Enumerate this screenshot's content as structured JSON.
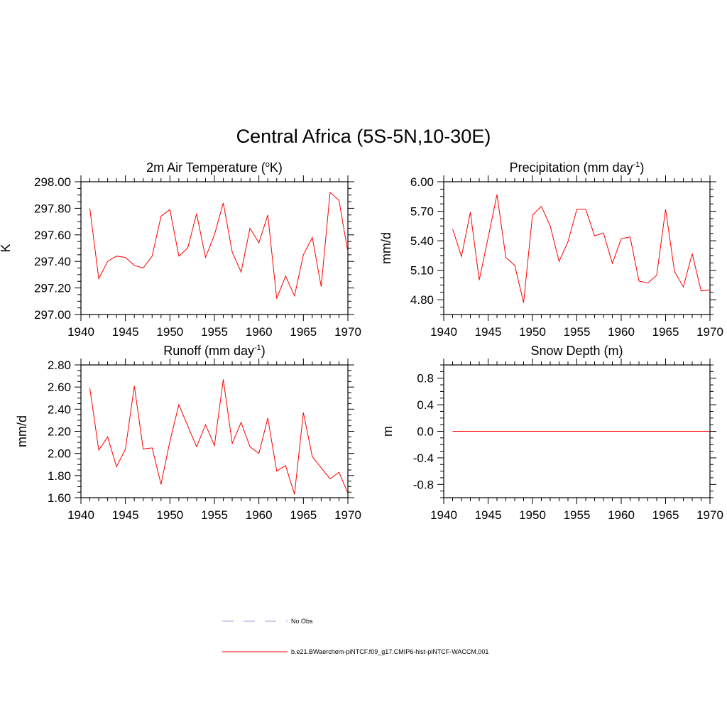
{
  "title": "Central Africa (5S-5N,10-30E)",
  "colors": {
    "model": "#ff0000",
    "obs": "#9999dd",
    "axis": "#000000"
  },
  "legend": [
    {
      "label": "No Obs",
      "style": "dashed",
      "color": "#9999dd"
    },
    {
      "label": "b.e21.BWaerchem-piNTCF.f09_g17.CMIP6-hist-piNTCF-WACCM.001",
      "style": "solid",
      "color": "#ff0000"
    }
  ],
  "chart_data": [
    {
      "type": "line",
      "title": "2m Air Temperature (°K)",
      "title_parts": {
        "pre": "2m Air Temperature (",
        "sup": "o",
        "post": "K)"
      },
      "ylabel": "K",
      "xlim": [
        1940,
        1970
      ],
      "ylim": [
        297.0,
        298.0
      ],
      "xticks": [
        1940,
        1945,
        1950,
        1955,
        1960,
        1965,
        1970
      ],
      "yticks": [
        "297.00",
        "297.20",
        "297.40",
        "297.60",
        "297.80",
        "298.00"
      ],
      "x": [
        1941,
        1942,
        1943,
        1944,
        1945,
        1946,
        1947,
        1948,
        1949,
        1950,
        1951,
        1952,
        1953,
        1954,
        1955,
        1956,
        1957,
        1958,
        1959,
        1960,
        1961,
        1962,
        1963,
        1964,
        1965,
        1966,
        1967,
        1968,
        1969,
        1970
      ],
      "series": [
        {
          "name": "b.e21.BWaerchem-piNTCF.f09_g17.CMIP6-hist-piNTCF-WACCM.001",
          "values": [
            297.8,
            297.27,
            297.4,
            297.44,
            297.43,
            297.37,
            297.35,
            297.44,
            297.74,
            297.79,
            297.44,
            297.5,
            297.76,
            297.43,
            297.6,
            297.84,
            297.47,
            297.32,
            297.65,
            297.54,
            297.75,
            297.12,
            297.29,
            297.14,
            297.45,
            297.58,
            297.21,
            297.92,
            297.86,
            297.47
          ]
        }
      ]
    },
    {
      "type": "line",
      "title": "Precipitation (mm day-1)",
      "title_parts": {
        "pre": "Precipitation (mm day",
        "sup": "-1",
        "post": ")"
      },
      "ylabel": "mm/d",
      "xlim": [
        1940,
        1970
      ],
      "ylim": [
        4.65,
        6.0
      ],
      "xticks": [
        1940,
        1945,
        1950,
        1955,
        1960,
        1965,
        1970
      ],
      "yticks": [
        "4.80",
        "5.10",
        "5.40",
        "5.70",
        "6.00"
      ],
      "x": [
        1941,
        1942,
        1943,
        1944,
        1945,
        1946,
        1947,
        1948,
        1949,
        1950,
        1951,
        1952,
        1953,
        1954,
        1955,
        1956,
        1957,
        1958,
        1959,
        1960,
        1961,
        1962,
        1963,
        1964,
        1965,
        1966,
        1967,
        1968,
        1969,
        1970
      ],
      "series": [
        {
          "name": "b.e21.BWaerchem-piNTCF.f09_g17.CMIP6-hist-piNTCF-WACCM.001",
          "values": [
            5.52,
            5.24,
            5.69,
            5.0,
            5.43,
            5.87,
            5.23,
            5.15,
            4.77,
            5.66,
            5.75,
            5.55,
            5.19,
            5.39,
            5.72,
            5.72,
            5.45,
            5.48,
            5.17,
            5.42,
            5.44,
            4.99,
            4.97,
            5.05,
            5.72,
            5.09,
            4.93,
            5.27,
            4.89,
            4.9
          ]
        }
      ]
    },
    {
      "type": "line",
      "title": "Runoff (mm day-1)",
      "title_parts": {
        "pre": "Runoff (mm day",
        "sup": "-1",
        "post": ")"
      },
      "ylabel": "mm/d",
      "xlim": [
        1940,
        1970
      ],
      "ylim": [
        1.6,
        2.8
      ],
      "xticks": [
        1940,
        1945,
        1950,
        1955,
        1960,
        1965,
        1970
      ],
      "yticks": [
        "1.60",
        "1.80",
        "2.00",
        "2.20",
        "2.40",
        "2.60",
        "2.80"
      ],
      "x": [
        1941,
        1942,
        1943,
        1944,
        1945,
        1946,
        1947,
        1948,
        1949,
        1950,
        1951,
        1952,
        1953,
        1954,
        1955,
        1956,
        1957,
        1958,
        1959,
        1960,
        1961,
        1962,
        1963,
        1964,
        1965,
        1966,
        1967,
        1968,
        1969,
        1970
      ],
      "series": [
        {
          "name": "b.e21.BWaerchem-piNTCF.f09_g17.CMIP6-hist-piNTCF-WACCM.001",
          "values": [
            2.59,
            2.03,
            2.15,
            1.88,
            2.04,
            2.61,
            2.04,
            2.05,
            1.72,
            2.11,
            2.44,
            2.25,
            2.06,
            2.26,
            2.07,
            2.67,
            2.09,
            2.28,
            2.06,
            2.0,
            2.32,
            1.84,
            1.89,
            1.63,
            2.37,
            1.97,
            1.87,
            1.77,
            1.83,
            1.64
          ]
        }
      ]
    },
    {
      "type": "line",
      "title": "Snow Depth (m)",
      "title_parts": {
        "pre": "Snow Depth (m)",
        "sup": "",
        "post": ""
      },
      "ylabel": "m",
      "xlim": [
        1940,
        1970
      ],
      "ylim": [
        -1.0,
        1.0
      ],
      "xticks": [
        1940,
        1945,
        1950,
        1955,
        1960,
        1965,
        1970
      ],
      "yticks": [
        "-0.8",
        "-0.4",
        "0.0",
        "0.4",
        "0.8"
      ],
      "x": [
        1941,
        1942,
        1943,
        1944,
        1945,
        1946,
        1947,
        1948,
        1949,
        1950,
        1951,
        1952,
        1953,
        1954,
        1955,
        1956,
        1957,
        1958,
        1959,
        1960,
        1961,
        1962,
        1963,
        1964,
        1965,
        1966,
        1967,
        1968,
        1969,
        1970
      ],
      "series": [
        {
          "name": "b.e21.BWaerchem-piNTCF.f09_g17.CMIP6-hist-piNTCF-WACCM.001",
          "values": [
            0,
            0,
            0,
            0,
            0,
            0,
            0,
            0,
            0,
            0,
            0,
            0,
            0,
            0,
            0,
            0,
            0,
            0,
            0,
            0,
            0,
            0,
            0,
            0,
            0,
            0,
            0,
            0,
            0,
            0
          ]
        }
      ]
    }
  ]
}
